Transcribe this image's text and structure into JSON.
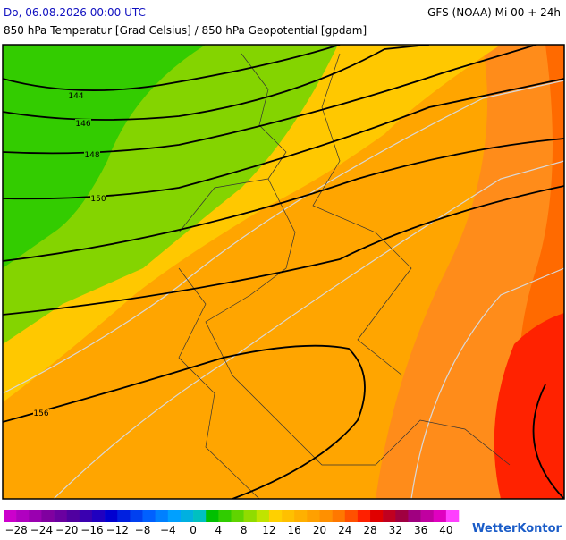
{
  "header": {
    "date": "Do, 06.08.2026 00:00 UTC",
    "model": "GFS (NOAA) Mi 00 + 24h",
    "subtitle": "850 hPa Temperatur [Grad Celsius] / 850 hPa Geopotential [gpdam]"
  },
  "map": {
    "contour_labels": [
      "144",
      "146",
      "148",
      "150",
      "156"
    ]
  },
  "colorbar": {
    "colors": [
      "#cc00cc",
      "#b000c0",
      "#9a00b0",
      "#8000a0",
      "#6a00a0",
      "#5000a0",
      "#3a00b0",
      "#2000c0",
      "#0000d0",
      "#0020e0",
      "#0040f0",
      "#0060ff",
      "#0080ff",
      "#00a0ff",
      "#00b0e0",
      "#00c0c0",
      "#00c000",
      "#30cc00",
      "#60d400",
      "#90dc00",
      "#c0e400",
      "#ffd000",
      "#ffc000",
      "#ffb000",
      "#ffa000",
      "#ff9000",
      "#ff7800",
      "#ff5000",
      "#ff2000",
      "#e00000",
      "#c00020",
      "#a00040",
      "#a00080",
      "#c000a0",
      "#e000c0",
      "#ff40ff"
    ],
    "ticks": [
      "−28",
      "−24",
      "−20",
      "−16",
      "−12",
      "−8",
      "−4",
      "0",
      "4",
      "8",
      "12",
      "16",
      "20",
      "24",
      "28",
      "32",
      "36",
      "40"
    ]
  },
  "logo": "WetterKontor"
}
